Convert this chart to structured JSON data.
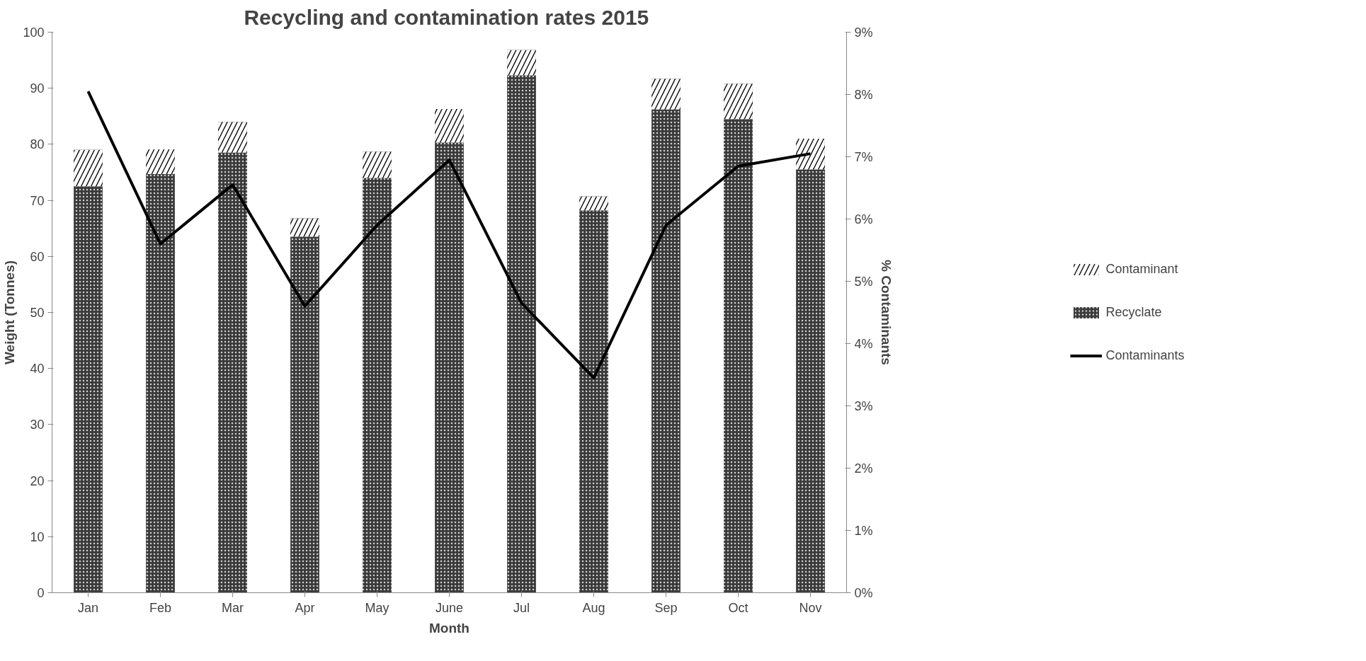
{
  "chart_data": {
    "type": "bar",
    "title": "Recycling and contamination rates  2015",
    "xlabel": "Month",
    "ylabel": "Weight (Tonnes)",
    "y2label": "% Contaminants",
    "categories": [
      "Jan",
      "Feb",
      "Mar",
      "Apr",
      "May",
      "June",
      "Jul",
      "Aug",
      "Sep",
      "Oct",
      "Nov"
    ],
    "stacked": true,
    "series": [
      {
        "name": "Recyclate",
        "color": "#3a3a3a",
        "values": [
          72.5,
          74.7,
          78.5,
          63.5,
          74.0,
          80.3,
          92.3,
          68.2,
          86.2,
          84.5,
          75.5
        ]
      },
      {
        "name": "Contaminant",
        "color": "#000000",
        "values": [
          6.5,
          4.4,
          5.5,
          3.3,
          4.7,
          6.0,
          4.5,
          2.5,
          5.5,
          6.3,
          5.5
        ]
      },
      {
        "name": "Contaminants",
        "type": "line",
        "axis": "y2",
        "color": "#000000",
        "values": [
          8.05,
          5.6,
          6.55,
          4.6,
          5.9,
          6.95,
          4.65,
          3.45,
          5.9,
          6.85,
          7.05
        ]
      }
    ],
    "ylim": [
      0,
      100
    ],
    "yticks": [
      0,
      10,
      20,
      30,
      40,
      50,
      60,
      70,
      80,
      90,
      100
    ],
    "y2lim": [
      0,
      9
    ],
    "y2ticks": [
      {
        "value": 0,
        "label": "0%"
      },
      {
        "value": 1,
        "label": "1%"
      },
      {
        "value": 2,
        "label": "2%"
      },
      {
        "value": 3,
        "label": "3%"
      },
      {
        "value": 4,
        "label": "4%"
      },
      {
        "value": 5,
        "label": "5%"
      },
      {
        "value": 6,
        "label": "6%"
      },
      {
        "value": 7,
        "label": "7%"
      },
      {
        "value": 8,
        "label": "8%"
      },
      {
        "value": 9,
        "label": "9%"
      }
    ],
    "grid": false,
    "legend": "right",
    "marker": "none",
    "line_style": "solid"
  }
}
